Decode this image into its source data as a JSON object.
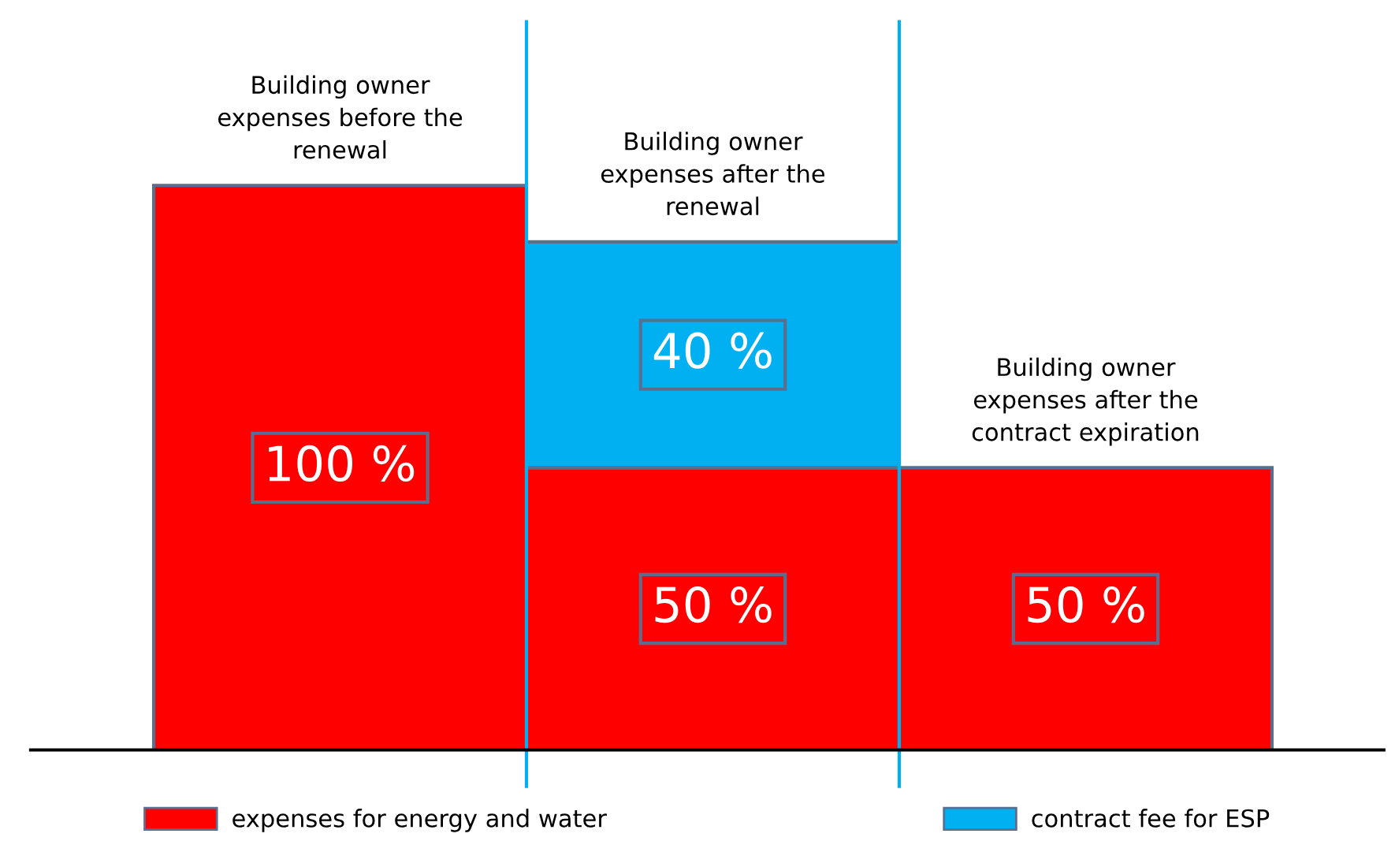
{
  "chart_data": {
    "type": "bar",
    "stacked": true,
    "categories": [
      "Building owner\nexpenses before the\nrenewal",
      "Building owner\nexpenses after the\nrenewal",
      "Building owner\nexpenses after the\ncontract expiration"
    ],
    "series": [
      {
        "name": "expenses for energy and water",
        "color": "#ff0000",
        "values": [
          100,
          50,
          50
        ],
        "value_labels": [
          "100 %",
          "50 %",
          "50 %"
        ]
      },
      {
        "name": "contract fee for ESP",
        "color": "#00b0f0",
        "values": [
          null,
          40,
          null
        ],
        "value_labels": [
          null,
          "40 %",
          null
        ]
      }
    ],
    "legend": "bottom"
  }
}
